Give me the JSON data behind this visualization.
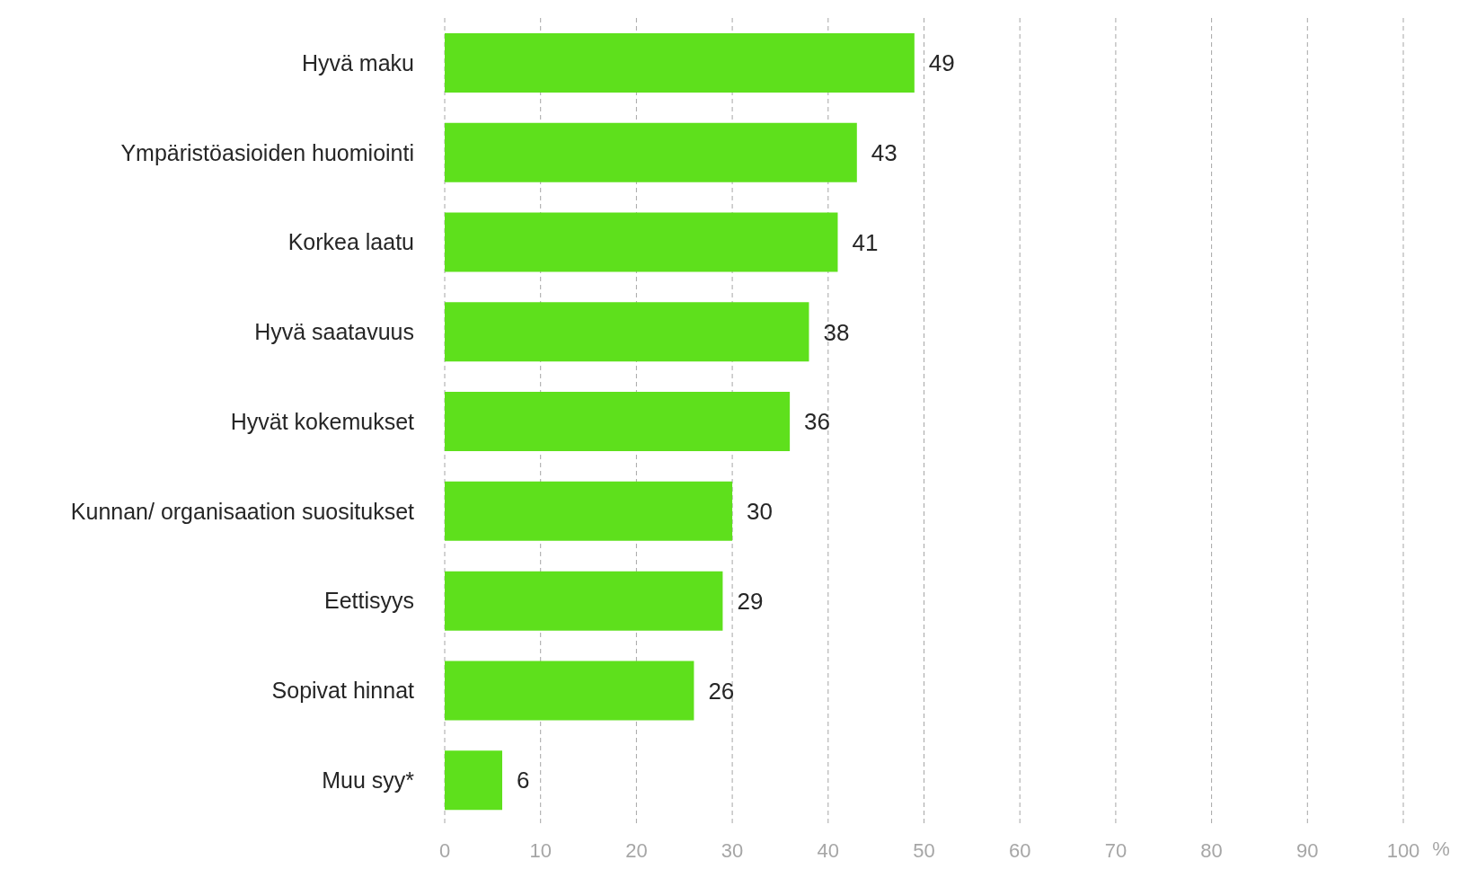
{
  "chart_data": {
    "type": "bar",
    "orientation": "horizontal",
    "categories": [
      "Hyvä maku",
      "Ympäristöasioiden huomiointi",
      "Korkea laatu",
      "Hyvä saatavuus",
      "Hyvät kokemukset",
      "Kunnan/ organisaation suositukset",
      "Eettisyys",
      "Sopivat hinnat",
      "Muu syy*"
    ],
    "values": [
      49,
      43,
      41,
      38,
      36,
      30,
      29,
      26,
      6
    ],
    "color": "#5ee01c",
    "xlabel": "%",
    "xlim": [
      0,
      100
    ],
    "xticks": [
      0,
      10,
      20,
      30,
      40,
      50,
      60,
      70,
      80,
      90,
      100
    ],
    "grid": "x",
    "data_labels": true
  }
}
